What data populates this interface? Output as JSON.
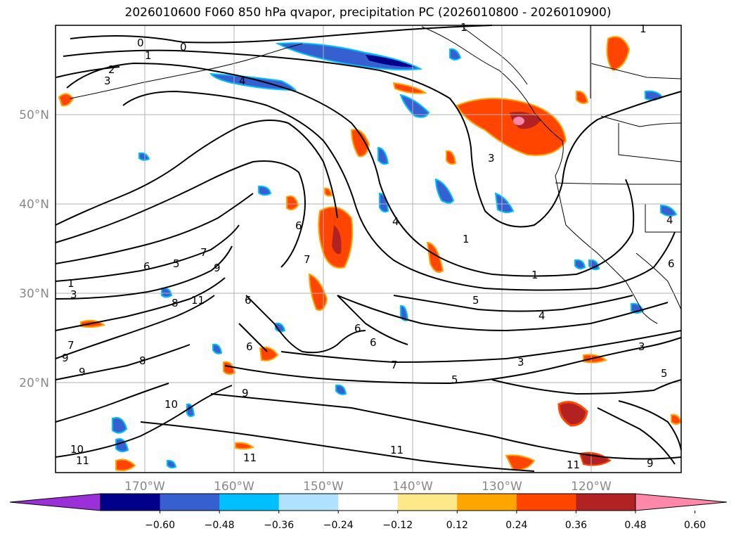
{
  "title": "2026010600 F060 850 hPa qvapor, precipitation PC (2026010800 - 2026010900)",
  "map": {
    "lat_labels": [
      "50°N",
      "40°N",
      "30°N",
      "20°N"
    ],
    "lon_labels": [
      "170°W",
      "160°W",
      "150°W",
      "140°W",
      "130°W",
      "120°W"
    ]
  },
  "colorbar": {
    "colors": [
      "#9b30d9",
      "#00008b",
      "#3660d0",
      "#00bfff",
      "#b0e2ff",
      "#ffffff",
      "#ffe88a",
      "#ffa500",
      "#ff4500",
      "#b22222",
      "#ff88aa"
    ],
    "ticks": [
      "−0.60",
      "−0.48",
      "−0.36",
      "−0.24",
      "−0.12",
      "0.12",
      "0.24",
      "0.36",
      "0.48",
      "0.60"
    ]
  },
  "contour_labels": [
    "0",
    "0",
    "1",
    "1",
    "2",
    "3",
    "4",
    "1",
    "3",
    "1",
    "1",
    "4",
    "3",
    "3",
    "5",
    "5",
    "6",
    "6",
    "6",
    "6",
    "7",
    "7",
    "7",
    "8",
    "8",
    "9",
    "9",
    "9",
    "10",
    "10",
    "11",
    "11",
    "11",
    "11",
    "11",
    "7",
    "6",
    "5",
    "4",
    "6",
    "3",
    "4",
    "6",
    "5",
    "9",
    "9",
    "1"
  ]
}
